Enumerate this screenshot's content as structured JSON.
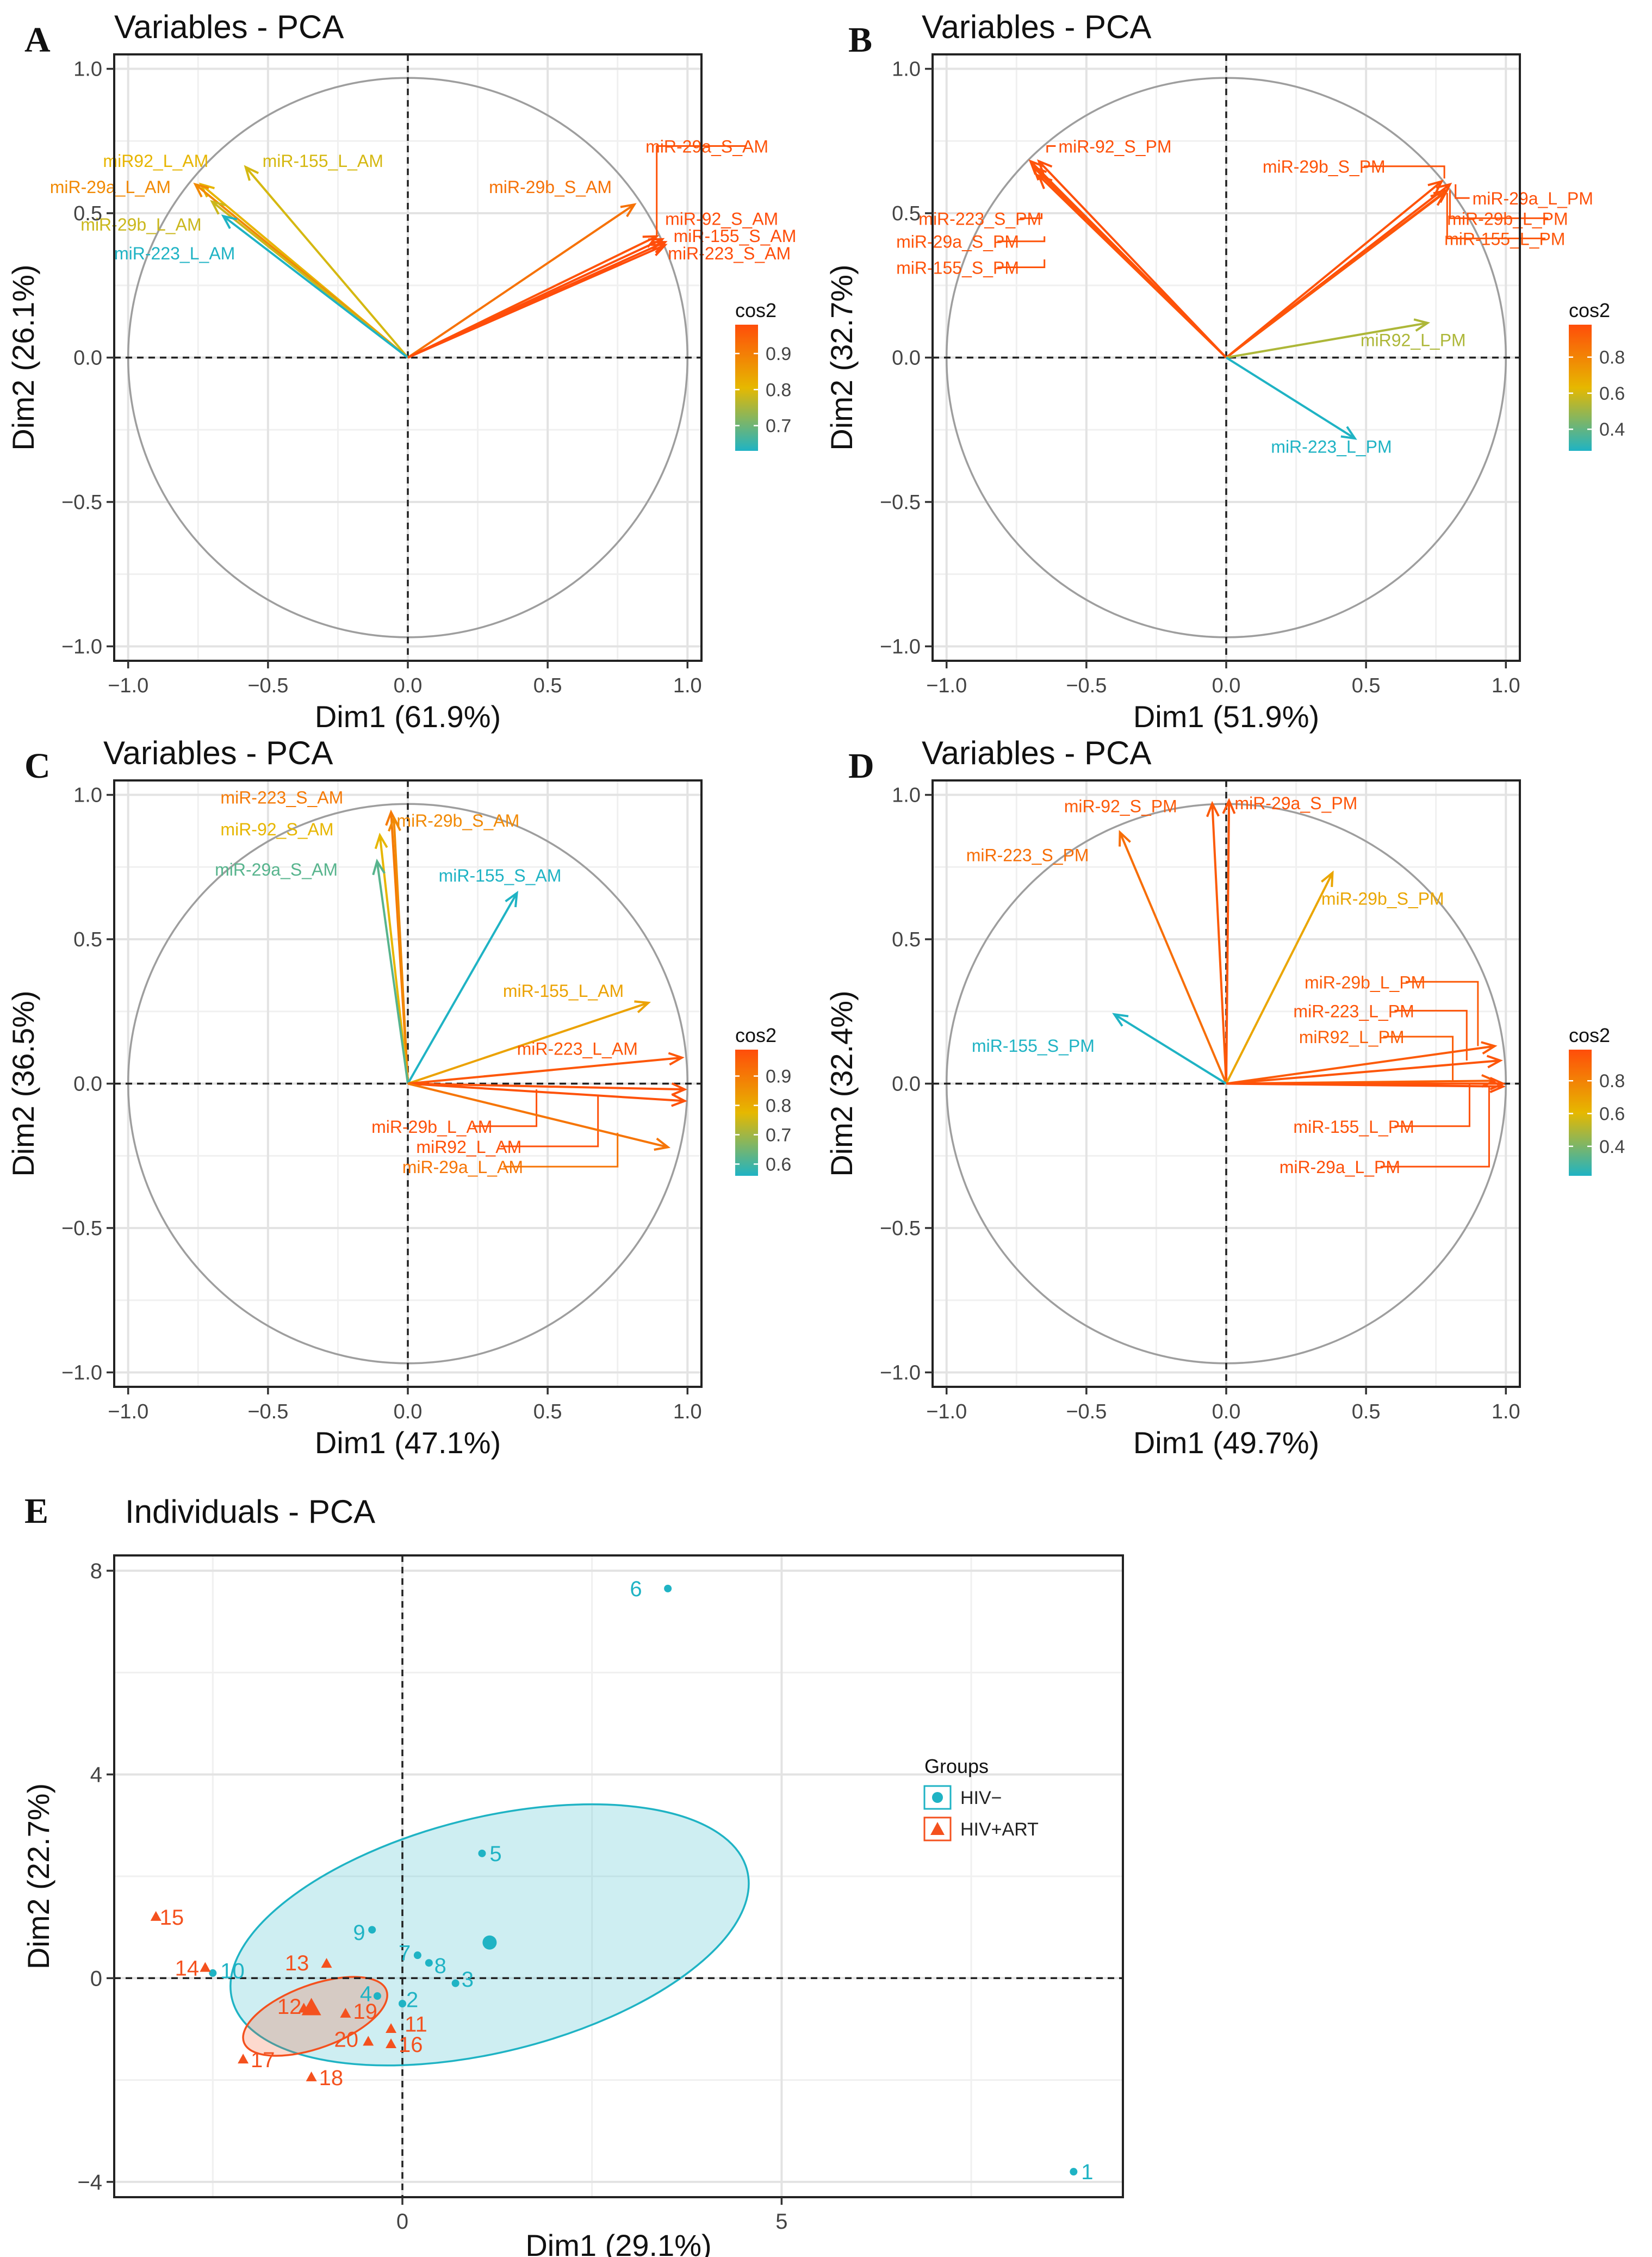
{
  "figure_type": "PCA biplot figure",
  "chart_data": [
    {
      "panel": "A",
      "type": "pca-variables",
      "title": "Variables - PCA",
      "xlabel": "Dim1 (61.9%)",
      "ylabel": "Dim2 (26.1%)",
      "xlim": [
        -1.05,
        1.05
      ],
      "ylim": [
        -1.05,
        1.05
      ],
      "xticks": [
        -1.0,
        -0.5,
        0.0,
        0.5,
        1.0
      ],
      "yticks": [
        -1.0,
        -0.5,
        0.0,
        0.5,
        1.0
      ],
      "xtick_labels": [
        "−1.0",
        "−0.5",
        "0.0",
        "0.5",
        "1.0"
      ],
      "ytick_labels": [
        "−1.0",
        "−0.5",
        "0.0",
        "0.5",
        "1.0"
      ],
      "legend": {
        "title": "cos2",
        "min": 0.63,
        "max": 0.98,
        "ticks": [
          0.7,
          0.8,
          0.9
        ],
        "tick_labels": [
          "0.7",
          "0.8",
          "0.9"
        ]
      },
      "vectors": [
        {
          "name": "miR92_L_AM",
          "x": -0.74,
          "y": 0.6,
          "cos2": 0.81
        },
        {
          "name": "miR-155_L_AM",
          "x": -0.58,
          "y": 0.66,
          "cos2": 0.79
        },
        {
          "name": "miR-29a_L_AM",
          "x": -0.76,
          "y": 0.6,
          "cos2": 0.88
        },
        {
          "name": "miR-29b_L_AM",
          "x": -0.7,
          "y": 0.54,
          "cos2": 0.78
        },
        {
          "name": "miR-223_L_AM",
          "x": -0.66,
          "y": 0.49,
          "cos2": 0.63
        },
        {
          "name": "miR-29b_S_AM",
          "x": 0.81,
          "y": 0.53,
          "cos2": 0.92
        },
        {
          "name": "miR-29a_S_AM",
          "x": 0.89,
          "y": 0.42,
          "cos2": 0.97
        },
        {
          "name": "miR-92_S_AM",
          "x": 0.91,
          "y": 0.41,
          "cos2": 0.98
        },
        {
          "name": "miR-155_S_AM",
          "x": 0.92,
          "y": 0.4,
          "cos2": 0.98
        },
        {
          "name": "miR-223_S_AM",
          "x": 0.92,
          "y": 0.39,
          "cos2": 0.98
        }
      ],
      "labels": [
        {
          "text": "miR92_L_AM",
          "lx": -1.09,
          "ly": 0.66,
          "px": null,
          "py": null
        },
        {
          "text": "miR-155_L_AM",
          "lx": -0.52,
          "ly": 0.66,
          "px": null,
          "py": null
        },
        {
          "text": "miR-29a_L_AM",
          "lx": -1.28,
          "ly": 0.57,
          "px": null,
          "py": null
        },
        {
          "text": "miR-29b_L_AM",
          "lx": -1.17,
          "ly": 0.44,
          "px": null,
          "py": null
        },
        {
          "text": "miR-223_L_AM",
          "lx": -1.05,
          "ly": 0.34,
          "px": null,
          "py": null
        },
        {
          "text": "miR-29b_S_AM",
          "lx": 0.29,
          "ly": 0.57,
          "px": null,
          "py": null
        },
        {
          "text": "miR-29a_S_AM",
          "lx": 0.85,
          "ly": 0.71,
          "px": 0.89,
          "py": 0.42
        },
        {
          "text": "miR-92_S_AM",
          "lx": 0.92,
          "ly": 0.46,
          "px": null,
          "py": null
        },
        {
          "text": "miR-155_S_AM",
          "lx": 0.95,
          "ly": 0.4,
          "px": null,
          "py": null
        },
        {
          "text": "miR-223_S_AM",
          "lx": 0.93,
          "ly": 0.34,
          "px": null,
          "py": null
        }
      ]
    },
    {
      "panel": "B",
      "type": "pca-variables",
      "title": "Variables - PCA",
      "xlabel": "Dim1 (51.9%)",
      "ylabel": "Dim2 (32.7%)",
      "xlim": [
        -1.05,
        1.05
      ],
      "ylim": [
        -1.05,
        1.05
      ],
      "xticks": [
        -1.0,
        -0.5,
        0.0,
        0.5,
        1.0
      ],
      "yticks": [
        -1.0,
        -0.5,
        0.0,
        0.5,
        1.0
      ],
      "xtick_labels": [
        "−1.0",
        "−0.5",
        "0.0",
        "0.5",
        "1.0"
      ],
      "ytick_labels": [
        "−1.0",
        "−0.5",
        "0.0",
        "0.5",
        "1.0"
      ],
      "legend": {
        "title": "cos2",
        "min": 0.28,
        "max": 0.98,
        "ticks": [
          0.4,
          0.6,
          0.8
        ],
        "tick_labels": [
          "0.4",
          "0.6",
          "0.8"
        ]
      },
      "vectors": [
        {
          "name": "miR-92_S_PM",
          "x": -0.67,
          "y": 0.68,
          "cos2": 0.97
        },
        {
          "name": "miR-223_S_PM",
          "x": -0.7,
          "y": 0.68,
          "cos2": 0.96
        },
        {
          "name": "miR-29a_S_PM",
          "x": -0.69,
          "y": 0.66,
          "cos2": 0.96
        },
        {
          "name": "miR-155_S_PM",
          "x": -0.67,
          "y": 0.63,
          "cos2": 0.96
        },
        {
          "name": "miR-29b_S_PM",
          "x": 0.77,
          "y": 0.61,
          "cos2": 0.96
        },
        {
          "name": "miR-29a_L_PM",
          "x": 0.8,
          "y": 0.6,
          "cos2": 0.97
        },
        {
          "name": "miR-29b_L_PM",
          "x": 0.79,
          "y": 0.58,
          "cos2": 0.96
        },
        {
          "name": "miR-155_L_PM",
          "x": 0.78,
          "y": 0.57,
          "cos2": 0.95
        },
        {
          "name": "miR92_L_PM",
          "x": 0.72,
          "y": 0.12,
          "cos2": 0.53
        },
        {
          "name": "miR-223_L_PM",
          "x": 0.46,
          "y": -0.28,
          "cos2": 0.28
        }
      ],
      "labels": [
        {
          "text": "miR-92_S_PM",
          "lx": -0.6,
          "ly": 0.71,
          "px": -0.64,
          "py": 0.71
        },
        {
          "text": "miR-223_S_PM",
          "lx": -1.1,
          "ly": 0.46,
          "px": -0.66,
          "py": 0.5
        },
        {
          "text": "miR-29a_S_PM",
          "lx": -1.18,
          "ly": 0.38,
          "px": -0.65,
          "py": 0.42
        },
        {
          "text": "miR-155_S_PM",
          "lx": -1.18,
          "ly": 0.29,
          "px": -0.65,
          "py": 0.34
        },
        {
          "text": "miR-29b_S_PM",
          "lx": 0.13,
          "ly": 0.64,
          "px": 0.78,
          "py": 0.62
        },
        {
          "text": "miR-29a_L_PM",
          "lx": 0.88,
          "ly": 0.53,
          "px": 0.82,
          "py": 0.6
        },
        {
          "text": "miR-29b_L_PM",
          "lx": 0.79,
          "ly": 0.46,
          "px": 0.8,
          "py": 0.58
        },
        {
          "text": "miR-155_L_PM",
          "lx": 0.78,
          "ly": 0.39,
          "px": 0.79,
          "py": 0.57
        },
        {
          "text": "miR92_L_PM",
          "lx": 0.48,
          "ly": 0.04,
          "px": null,
          "py": null
        },
        {
          "text": "miR-223_L_PM",
          "lx": 0.16,
          "ly": -0.33,
          "px": null,
          "py": null
        }
      ]
    },
    {
      "panel": "C",
      "type": "pca-variables",
      "title": "Variables - PCA",
      "xlabel": "Dim1 (47.1%)",
      "ylabel": "Dim2 (36.5%)",
      "xlim": [
        -1.05,
        1.05
      ],
      "ylim": [
        -1.05,
        1.05
      ],
      "xticks": [
        -1.0,
        -0.5,
        0.0,
        0.5,
        1.0
      ],
      "yticks": [
        -1.0,
        -0.5,
        0.0,
        0.5,
        1.0
      ],
      "xtick_labels": [
        "−1.0",
        "−0.5",
        "0.0",
        "0.5",
        "1.0"
      ],
      "ytick_labels": [
        "−1.0",
        "−0.5",
        "0.0",
        "0.5",
        "1.0"
      ],
      "legend": {
        "title": "cos2",
        "min": 0.56,
        "max": 0.99,
        "ticks": [
          0.6,
          0.7,
          0.8,
          0.9
        ],
        "tick_labels": [
          "0.6",
          "0.7",
          "0.8",
          "0.9"
        ]
      },
      "vectors": [
        {
          "name": "miR-223_S_AM",
          "x": -0.06,
          "y": 0.94,
          "cos2": 0.9
        },
        {
          "name": "miR-29b_S_AM",
          "x": -0.05,
          "y": 0.92,
          "cos2": 0.87
        },
        {
          "name": "miR-92_S_AM",
          "x": -0.1,
          "y": 0.86,
          "cos2": 0.78
        },
        {
          "name": "miR-29a_S_AM",
          "x": -0.11,
          "y": 0.77,
          "cos2": 0.62
        },
        {
          "name": "miR-155_S_AM",
          "x": 0.39,
          "y": 0.66,
          "cos2": 0.56
        },
        {
          "name": "miR-155_L_AM",
          "x": 0.86,
          "y": 0.28,
          "cos2": 0.82
        },
        {
          "name": "miR-223_L_AM",
          "x": 0.98,
          "y": 0.09,
          "cos2": 0.97
        },
        {
          "name": "miR-29b_L_AM",
          "x": 0.99,
          "y": -0.02,
          "cos2": 0.98
        },
        {
          "name": "miR92_L_AM",
          "x": 0.99,
          "y": -0.06,
          "cos2": 0.98
        },
        {
          "name": "miR-29a_L_AM",
          "x": 0.93,
          "y": -0.22,
          "cos2": 0.91
        }
      ],
      "labels": [
        {
          "text": "miR-223_S_AM",
          "lx": -0.67,
          "ly": 0.97,
          "px": null,
          "py": null
        },
        {
          "text": "miR-29b_S_AM",
          "lx": -0.04,
          "ly": 0.89,
          "px": null,
          "py": null
        },
        {
          "text": "miR-92_S_AM",
          "lx": -0.67,
          "ly": 0.86,
          "px": null,
          "py": null
        },
        {
          "text": "miR-29a_S_AM",
          "lx": -0.69,
          "ly": 0.72,
          "px": null,
          "py": null
        },
        {
          "text": "miR-155_S_AM",
          "lx": 0.11,
          "ly": 0.7,
          "px": null,
          "py": null
        },
        {
          "text": "miR-155_L_AM",
          "lx": 0.34,
          "ly": 0.3,
          "px": null,
          "py": null
        },
        {
          "text": "miR-223_L_AM",
          "lx": 0.39,
          "ly": 0.1,
          "px": null,
          "py": null
        },
        {
          "text": "miR-29b_L_AM",
          "lx": -0.13,
          "ly": -0.17,
          "px": 0.46,
          "py": -0.02
        },
        {
          "text": "miR92_L_AM",
          "lx": 0.03,
          "ly": -0.24,
          "px": 0.68,
          "py": -0.04
        },
        {
          "text": "miR-29a_L_AM",
          "lx": -0.02,
          "ly": -0.31,
          "px": 0.75,
          "py": -0.17
        }
      ]
    },
    {
      "panel": "D",
      "type": "pca-variables",
      "title": "Variables - PCA",
      "xlabel": "Dim1 (49.7%)",
      "ylabel": "Dim2 (32.4%)",
      "xlim": [
        -1.05,
        1.05
      ],
      "ylim": [
        -1.05,
        1.05
      ],
      "xticks": [
        -1.0,
        -0.5,
        0.0,
        0.5,
        1.0
      ],
      "yticks": [
        -1.0,
        -0.5,
        0.0,
        0.5,
        1.0
      ],
      "xtick_labels": [
        "−1.0",
        "−0.5",
        "0.0",
        "0.5",
        "1.0"
      ],
      "ytick_labels": [
        "−1.0",
        "−0.5",
        "0.0",
        "0.5",
        "1.0"
      ],
      "legend": {
        "title": "cos2",
        "min": 0.22,
        "max": 0.99,
        "ticks": [
          0.4,
          0.6,
          0.8
        ],
        "tick_labels": [
          "0.4",
          "0.6",
          "0.8"
        ]
      },
      "vectors": [
        {
          "name": "miR-92_S_PM",
          "x": -0.05,
          "y": 0.97,
          "cos2": 0.94
        },
        {
          "name": "miR-29a_S_PM",
          "x": 0.01,
          "y": 0.98,
          "cos2": 0.96
        },
        {
          "name": "miR-223_S_PM",
          "x": -0.38,
          "y": 0.87,
          "cos2": 0.87
        },
        {
          "name": "miR-29b_S_PM",
          "x": 0.38,
          "y": 0.73,
          "cos2": 0.67
        },
        {
          "name": "miR-155_S_PM",
          "x": -0.4,
          "y": 0.24,
          "cos2": 0.22
        },
        {
          "name": "miR-29b_L_PM",
          "x": 0.96,
          "y": 0.13,
          "cos2": 0.94
        },
        {
          "name": "miR-223_L_PM",
          "x": 0.98,
          "y": 0.08,
          "cos2": 0.96
        },
        {
          "name": "miR92_L_PM",
          "x": 0.96,
          "y": 0.01,
          "cos2": 0.93
        },
        {
          "name": "miR-155_L_PM",
          "x": 0.99,
          "y": 0.0,
          "cos2": 0.97
        },
        {
          "name": "miR-29a_L_PM",
          "x": 0.99,
          "y": -0.01,
          "cos2": 0.98
        }
      ],
      "labels": [
        {
          "text": "miR-92_S_PM",
          "lx": -0.58,
          "ly": 0.94,
          "px": null,
          "py": null
        },
        {
          "text": "miR-29a_S_PM",
          "lx": 0.03,
          "ly": 0.95,
          "px": null,
          "py": null
        },
        {
          "text": "miR-223_S_PM",
          "lx": -0.93,
          "ly": 0.77,
          "px": null,
          "py": null
        },
        {
          "text": "miR-29b_S_PM",
          "lx": 0.34,
          "ly": 0.62,
          "px": null,
          "py": null
        },
        {
          "text": "miR-155_S_PM",
          "lx": -0.91,
          "ly": 0.11,
          "px": null,
          "py": null
        },
        {
          "text": "miR-29b_L_PM",
          "lx": 0.28,
          "ly": 0.33,
          "px": 0.9,
          "py": 0.13
        },
        {
          "text": "miR-223_L_PM",
          "lx": 0.24,
          "ly": 0.23,
          "px": 0.86,
          "py": 0.08
        },
        {
          "text": "miR92_L_PM",
          "lx": 0.26,
          "ly": 0.14,
          "px": 0.81,
          "py": 0.01
        },
        {
          "text": "miR-155_L_PM",
          "lx": 0.24,
          "ly": -0.17,
          "px": 0.87,
          "py": 0.0
        },
        {
          "text": "miR-29a_L_PM",
          "lx": 0.19,
          "ly": -0.31,
          "px": 0.94,
          "py": -0.01
        }
      ]
    },
    {
      "panel": "E",
      "type": "scatter",
      "title": "Individuals - PCA",
      "xlabel": "Dim1 (29.1%)",
      "ylabel": "Dim2 (22.7%)",
      "xlim": [
        -3.8,
        9.5
      ],
      "ylim": [
        -4.3,
        8.3
      ],
      "xticks": [
        0,
        5
      ],
      "yticks": [
        -4,
        0,
        4,
        8
      ],
      "xtick_labels": [
        "0",
        "5"
      ],
      "ytick_labels": [
        "−4",
        "0",
        "4",
        "8"
      ],
      "legend": {
        "title": "Groups",
        "position": "right",
        "items": [
          {
            "name": "HIV−",
            "color": "#1fb3c4",
            "shape": "circle"
          },
          {
            "name": "HIV+ART",
            "color": "#f4511e",
            "shape": "triangle"
          }
        ]
      },
      "series": [
        {
          "name": "HIV−",
          "color": "#1fb3c4",
          "shape": "circle",
          "centroid": {
            "x": 1.15,
            "y": 0.7
          },
          "ellipse": {
            "cx": 1.15,
            "cy": 0.85,
            "rx": 3.5,
            "ry": 2.3,
            "angle_deg": -14
          },
          "points": [
            {
              "id": "1",
              "x": 8.85,
              "y": -3.8
            },
            {
              "id": "2",
              "x": 0.0,
              "y": -0.5
            },
            {
              "id": "3",
              "x": 0.7,
              "y": -0.1
            },
            {
              "id": "4",
              "x": -0.33,
              "y": -0.35
            },
            {
              "id": "5",
              "x": 1.05,
              "y": 2.45
            },
            {
              "id": "6",
              "x": 3.5,
              "y": 7.65
            },
            {
              "id": "7",
              "x": 0.2,
              "y": 0.45
            },
            {
              "id": "8",
              "x": 0.35,
              "y": 0.3
            },
            {
              "id": "9",
              "x": -0.4,
              "y": 0.95
            },
            {
              "id": "10",
              "x": -2.5,
              "y": 0.1
            }
          ],
          "label_pos": [
            {
              "lx": 8.95,
              "ly": -3.8
            },
            {
              "lx": 0.05,
              "ly": -0.42
            },
            {
              "lx": 0.78,
              "ly": -0.02
            },
            {
              "lx": -0.56,
              "ly": -0.3
            },
            {
              "lx": 1.15,
              "ly": 2.45
            },
            {
              "lx": 3.0,
              "ly": 7.65
            },
            {
              "lx": -0.05,
              "ly": 0.5
            },
            {
              "lx": 0.42,
              "ly": 0.25
            },
            {
              "lx": -0.65,
              "ly": 0.9
            },
            {
              "lx": -2.4,
              "ly": 0.15
            }
          ]
        },
        {
          "name": "HIV+ART",
          "color": "#f4511e",
          "shape": "triangle",
          "centroid": {
            "x": -1.2,
            "y": -0.6
          },
          "ellipse": {
            "cx": -1.15,
            "cy": -0.75,
            "rx": 1.0,
            "ry": 0.62,
            "angle_deg": -20
          },
          "points": [
            {
              "id": "11",
              "x": -0.15,
              "y": -1.0
            },
            {
              "id": "12",
              "x": -1.3,
              "y": -0.6
            },
            {
              "id": "13",
              "x": -1.0,
              "y": 0.28
            },
            {
              "id": "14",
              "x": -2.6,
              "y": 0.2
            },
            {
              "id": "15",
              "x": -3.25,
              "y": 1.2
            },
            {
              "id": "16",
              "x": -0.15,
              "y": -1.3
            },
            {
              "id": "17",
              "x": -2.1,
              "y": -1.6
            },
            {
              "id": "18",
              "x": -1.2,
              "y": -1.95
            },
            {
              "id": "19",
              "x": -0.75,
              "y": -0.7
            },
            {
              "id": "20",
              "x": -0.45,
              "y": -1.25
            }
          ],
          "label_pos": [
            {
              "lx": 0.03,
              "ly": -0.9
            },
            {
              "lx": -1.65,
              "ly": -0.55
            },
            {
              "lx": -1.55,
              "ly": 0.3
            },
            {
              "lx": -3.0,
              "ly": 0.2
            },
            {
              "lx": -3.2,
              "ly": 1.2
            },
            {
              "lx": -0.05,
              "ly": -1.3
            },
            {
              "lx": -2.0,
              "ly": -1.6
            },
            {
              "lx": -1.1,
              "ly": -1.95
            },
            {
              "lx": -0.65,
              "ly": -0.65
            },
            {
              "lx": -0.9,
              "ly": -1.2
            }
          ]
        }
      ]
    }
  ]
}
